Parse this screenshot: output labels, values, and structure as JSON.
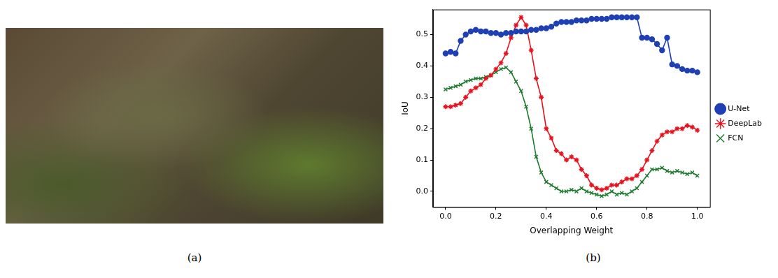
{
  "panel_labels": [
    "(a)",
    "(b)"
  ],
  "chart_data": {
    "type": "line",
    "x_label": "Overlapping Weight",
    "y_label": "IoU",
    "x": [
      0.0,
      0.02,
      0.04,
      0.06,
      0.08,
      0.1,
      0.12,
      0.14,
      0.16,
      0.18,
      0.2,
      0.22,
      0.24,
      0.26,
      0.28,
      0.3,
      0.32,
      0.34,
      0.36,
      0.38,
      0.4,
      0.42,
      0.44,
      0.46,
      0.48,
      0.5,
      0.52,
      0.54,
      0.56,
      0.58,
      0.6,
      0.62,
      0.64,
      0.66,
      0.68,
      0.7,
      0.72,
      0.74,
      0.76,
      0.78,
      0.8,
      0.82,
      0.84,
      0.86,
      0.88,
      0.9,
      0.92,
      0.94,
      0.96,
      0.98,
      1.0
    ],
    "series": [
      {
        "name": "U-Net",
        "color": "#1f3fb4",
        "marker": "circle",
        "values": [
          0.44,
          0.445,
          0.44,
          0.48,
          0.5,
          0.51,
          0.515,
          0.51,
          0.51,
          0.505,
          0.505,
          0.5,
          0.505,
          0.505,
          0.51,
          0.51,
          0.51,
          0.515,
          0.515,
          0.52,
          0.52,
          0.525,
          0.535,
          0.54,
          0.54,
          0.54,
          0.545,
          0.545,
          0.545,
          0.55,
          0.55,
          0.55,
          0.55,
          0.555,
          0.555,
          0.555,
          0.555,
          0.555,
          0.555,
          0.49,
          0.49,
          0.485,
          0.47,
          0.45,
          0.49,
          0.405,
          0.4,
          0.39,
          0.385,
          0.385,
          0.38
        ]
      },
      {
        "name": "DeepLab",
        "color": "#e8121e",
        "marker": "star",
        "values": [
          0.27,
          0.27,
          0.275,
          0.28,
          0.3,
          0.32,
          0.33,
          0.34,
          0.36,
          0.37,
          0.39,
          0.41,
          0.44,
          0.49,
          0.53,
          0.555,
          0.53,
          0.45,
          0.36,
          0.3,
          0.2,
          0.17,
          0.13,
          0.12,
          0.1,
          0.11,
          0.1,
          0.07,
          0.05,
          0.02,
          0.01,
          0.005,
          0.01,
          0.02,
          0.02,
          0.03,
          0.04,
          0.04,
          0.05,
          0.07,
          0.1,
          0.13,
          0.16,
          0.18,
          0.19,
          0.19,
          0.2,
          0.2,
          0.21,
          0.205,
          0.195
        ]
      },
      {
        "name": "FCN",
        "color": "#1e7a2e",
        "marker": "x",
        "values": [
          0.325,
          0.33,
          0.335,
          0.34,
          0.35,
          0.355,
          0.36,
          0.36,
          0.365,
          0.37,
          0.38,
          0.39,
          0.395,
          0.38,
          0.35,
          0.32,
          0.27,
          0.2,
          0.11,
          0.06,
          0.03,
          0.02,
          0.01,
          0.0,
          0.0,
          0.005,
          0.0,
          0.01,
          0.0,
          -0.005,
          -0.01,
          -0.015,
          -0.01,
          0.0,
          -0.01,
          -0.005,
          -0.01,
          0.0,
          0.01,
          0.03,
          0.05,
          0.07,
          0.07,
          0.075,
          0.065,
          0.06,
          0.065,
          0.06,
          0.055,
          0.06,
          0.05
        ]
      }
    ],
    "xlim": [
      -0.05,
      1.05
    ],
    "xticks": [
      {
        "value": 0,
        "label": "0.0"
      },
      0.2,
      0.4,
      0.6,
      0.8,
      {
        "value": 1,
        "label": "1.0"
      }
    ],
    "ylim": [
      -0.05,
      0.58
    ],
    "yticks": [
      {
        "value": 0,
        "label": "0.0"
      },
      0.1,
      0.2,
      0.3,
      0.4,
      0.5
    ],
    "grid": false,
    "legend": "right"
  }
}
